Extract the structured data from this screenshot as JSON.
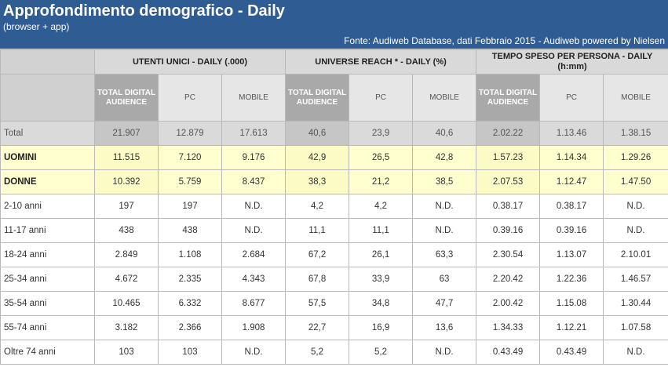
{
  "header": {
    "title": "Approfondimento demografico - Daily",
    "subtitle": "(browser + app)",
    "source": "Fonte: Audiweb Database, dati Febbraio 2015 - Audiweb powered by Nielsen"
  },
  "groups": [
    {
      "label": "UTENTI UNICI - DAILY (.000)"
    },
    {
      "label": "UNIVERSE REACH * - DAILY (%)"
    },
    {
      "label": "TEMPO SPESO PER PERSONA - DAILY (h:mm)"
    }
  ],
  "subheaders": {
    "tda": "TOTAL DIGITAL AUDIENCE",
    "pc": "PC",
    "mobile": "MOBILE"
  },
  "rows": [
    {
      "label": "Total",
      "v": [
        "21.907",
        "12.879",
        "17.613",
        "40,6",
        "23,9",
        "40,6",
        "2.02.22",
        "1.13.46",
        "1.38.15"
      ]
    },
    {
      "label": "UOMINI",
      "v": [
        "11.515",
        "7.120",
        "9.176",
        "42,9",
        "26,5",
        "42,8",
        "1.57.23",
        "1.14.34",
        "1.29.26"
      ]
    },
    {
      "label": "DONNE",
      "v": [
        "10.392",
        "5.759",
        "8.437",
        "38,3",
        "21,2",
        "38,5",
        "2.07.53",
        "1.12.47",
        "1.47.50"
      ]
    },
    {
      "label": "2-10 anni",
      "v": [
        "197",
        "197",
        "N.D.",
        "4,2",
        "4,2",
        "N.D.",
        "0.38.17",
        "0.38.17",
        "N.D."
      ]
    },
    {
      "label": "11-17 anni",
      "v": [
        "438",
        "438",
        "N.D.",
        "11,1",
        "11,1",
        "N.D.",
        "0.39.16",
        "0.39.16",
        "N.D."
      ]
    },
    {
      "label": "18-24 anni",
      "v": [
        "2.849",
        "1.108",
        "2.684",
        "67,2",
        "26,1",
        "63,3",
        "2.30.54",
        "1.13.07",
        "2.10.01"
      ]
    },
    {
      "label": "25-34 anni",
      "v": [
        "4.672",
        "2.335",
        "4.343",
        "67,8",
        "33,9",
        "63",
        "2.20.42",
        "1.22.36",
        "1.46.57"
      ]
    },
    {
      "label": "35-54 anni",
      "v": [
        "10.465",
        "6.332",
        "8.677",
        "57,5",
        "34,8",
        "47,7",
        "2.00.42",
        "1.15.08",
        "1.30.44"
      ]
    },
    {
      "label": "55-74 anni",
      "v": [
        "3.182",
        "2.366",
        "1.908",
        "22,7",
        "16,9",
        "13,6",
        "1.34.33",
        "1.12.21",
        "1.07.58"
      ]
    },
    {
      "label": "Oltre 74 anni",
      "v": [
        "103",
        "103",
        "N.D.",
        "5,2",
        "5,2",
        "N.D.",
        "0.43.49",
        "0.43.49",
        "N.D."
      ]
    }
  ]
}
